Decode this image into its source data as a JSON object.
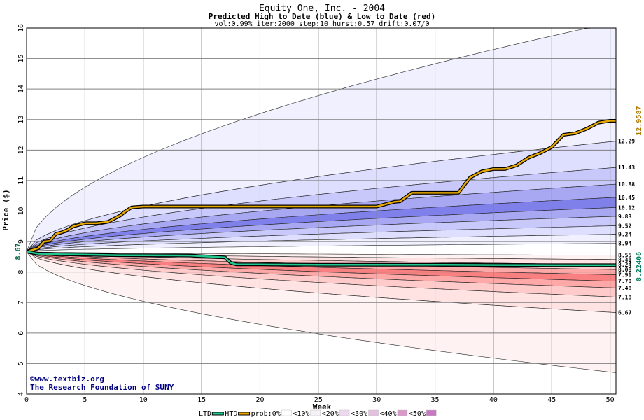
{
  "chart_data": {
    "type": "area",
    "title": "Equity One, Inc. - 2004",
    "subtitle": "Predicted High to Date (blue) &  Low to Date (red)",
    "params": "vol:0.99% iter:2000 step:10 hurst:0.57 drift:0.07/0",
    "xlabel": "Week",
    "ylabel": "Price ($)",
    "xlim": [
      0,
      50.5
    ],
    "ylim": [
      4,
      16
    ],
    "grid": true,
    "x_ticks": [
      0,
      5,
      10,
      15,
      20,
      25,
      30,
      35,
      40,
      45,
      50
    ],
    "y_ticks": [
      4,
      5,
      6,
      7,
      8,
      9,
      10,
      11,
      12,
      13,
      14,
      15,
      16
    ],
    "start_price": 8.67,
    "start_price_label": "8.67",
    "htd_final": 12.9587,
    "htd_final_label": "12.9587",
    "ltd_final": 8.22406,
    "ltd_final_label": "8.22406",
    "band_labels": [
      "12.29",
      "11.43",
      "10.88",
      "10.45",
      "10.12",
      "9.83",
      "9.52",
      "9.24",
      "8.94",
      "8.55",
      "8.41",
      "8.24",
      "8.08",
      "7.91",
      "7.70",
      "7.48",
      "7.18",
      "6.67"
    ],
    "high_bands": [
      {
        "prob": "<10%",
        "color": "#f0f0ff",
        "upper_final": 16.2,
        "lower_final": 12.29
      },
      {
        "prob": "<20%",
        "color": "#dedeff",
        "upper_final": 12.29,
        "lower_final": 11.43
      },
      {
        "prob": "<30%",
        "color": "#c8c8fa",
        "upper_final": 11.43,
        "lower_final": 10.88
      },
      {
        "prob": "<40%",
        "color": "#a8a8f2",
        "upper_final": 10.88,
        "lower_final": 10.45
      },
      {
        "prob": "<50%",
        "color": "#8080ea",
        "upper_final": 10.45,
        "lower_final": 10.12
      },
      {
        "prob": "<40%",
        "color": "#a8a8f2",
        "upper_final": 10.12,
        "lower_final": 9.83
      },
      {
        "prob": "<30%",
        "color": "#c8c8fa",
        "upper_final": 9.83,
        "lower_final": 9.52
      },
      {
        "prob": "<20%",
        "color": "#dedeff",
        "upper_final": 9.52,
        "lower_final": 9.24
      },
      {
        "prob": "<10%",
        "color": "#f0f0ff",
        "upper_final": 9.24,
        "lower_final": 8.94
      }
    ],
    "low_bands": [
      {
        "prob": "<10%",
        "color": "#fff2f2",
        "upper_final": 8.55,
        "lower_final": 8.41
      },
      {
        "prob": "<20%",
        "color": "#ffe2e2",
        "upper_final": 8.41,
        "lower_final": 8.24
      },
      {
        "prob": "<30%",
        "color": "#ffcaca",
        "upper_final": 8.24,
        "lower_final": 8.08
      },
      {
        "prob": "<40%",
        "color": "#ffa8a8",
        "upper_final": 8.08,
        "lower_final": 7.91
      },
      {
        "prob": "<50%",
        "color": "#f88080",
        "upper_final": 7.91,
        "lower_final": 7.7
      },
      {
        "prob": "<40%",
        "color": "#ffa8a8",
        "upper_final": 7.7,
        "lower_final": 7.48
      },
      {
        "prob": "<30%",
        "color": "#ffcaca",
        "upper_final": 7.48,
        "lower_final": 7.18
      },
      {
        "prob": "<20%",
        "color": "#ffe2e2",
        "upper_final": 7.18,
        "lower_final": 6.67
      },
      {
        "prob": "<10%",
        "color": "#fff2f2",
        "upper_final": 6.67,
        "lower_final": 4.7
      }
    ],
    "htd_series": {
      "name": "HTD",
      "color": "#e8a800",
      "x": [
        0,
        1,
        1.5,
        2,
        2.5,
        3,
        3.5,
        4,
        5,
        6,
        7,
        7.5,
        8,
        8.5,
        9,
        10,
        12,
        15,
        20,
        25,
        30,
        31.5,
        32,
        33,
        34,
        37,
        38,
        39,
        40,
        41,
        42,
        43,
        44,
        45,
        46,
        47,
        48,
        49,
        50,
        50.5
      ],
      "y": [
        8.67,
        8.78,
        9.0,
        9.02,
        9.25,
        9.3,
        9.38,
        9.5,
        9.6,
        9.6,
        9.65,
        9.75,
        9.85,
        10.0,
        10.12,
        10.15,
        10.15,
        10.15,
        10.15,
        10.15,
        10.15,
        10.3,
        10.32,
        10.6,
        10.6,
        10.6,
        11.1,
        11.3,
        11.38,
        11.38,
        11.5,
        11.75,
        11.9,
        12.1,
        12.5,
        12.55,
        12.7,
        12.9,
        12.96,
        12.96
      ]
    },
    "ltd_series": {
      "name": "LTD",
      "color": "#20c890",
      "x": [
        0,
        1,
        3,
        5,
        8,
        10,
        14,
        16,
        17,
        17.5,
        18,
        20,
        25,
        30,
        35,
        40,
        45,
        50,
        50.5
      ],
      "y": [
        8.67,
        8.6,
        8.58,
        8.57,
        8.55,
        8.55,
        8.54,
        8.5,
        8.48,
        8.3,
        8.25,
        8.25,
        8.24,
        8.24,
        8.24,
        8.23,
        8.225,
        8.224,
        8.224
      ]
    },
    "credit_1": "©www.textbiz.org",
    "credit_2": "The Research Foundation of SUNY",
    "legend": {
      "placement": "bottom",
      "items": [
        {
          "label": "LTD",
          "kind": "line",
          "color": "#20c890"
        },
        {
          "label": "HTD",
          "kind": "line",
          "color": "#e8a800"
        },
        {
          "label": "prob:0%",
          "kind": "swatch",
          "color": "#ffffff"
        },
        {
          "label": "<10%",
          "kind": "swatch",
          "color": "#f6f0f8"
        },
        {
          "label": "<20%",
          "kind": "swatch",
          "color": "#eed8ee"
        },
        {
          "label": "<30%",
          "kind": "swatch",
          "color": "#e4c0e0"
        },
        {
          "label": "<40%",
          "kind": "swatch",
          "color": "#d898c8"
        },
        {
          "label": "<50%",
          "kind": "swatch",
          "color": "#c878c0"
        }
      ]
    }
  }
}
